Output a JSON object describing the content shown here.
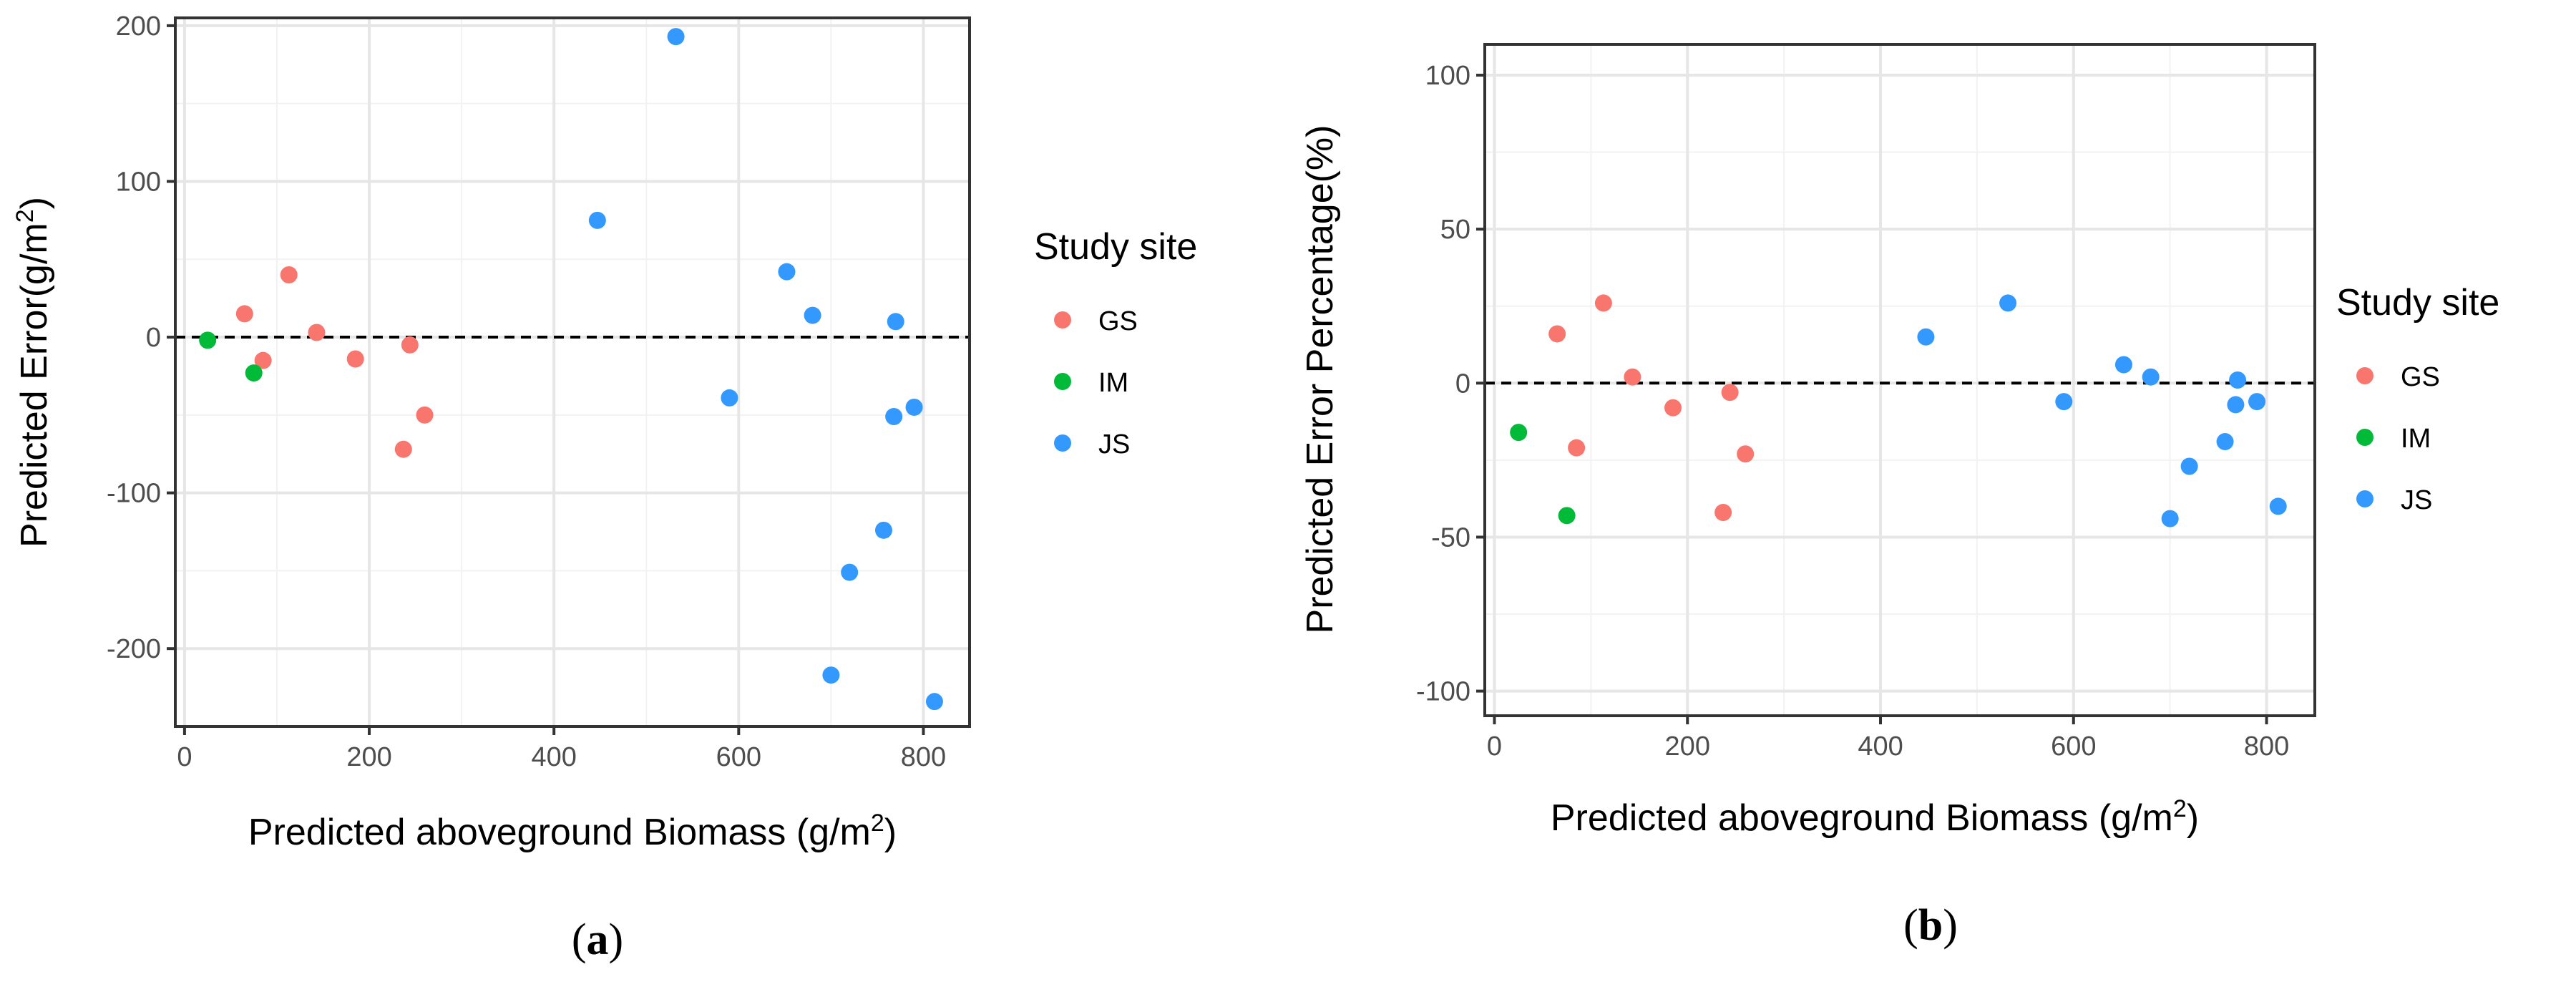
{
  "chart_data": [
    {
      "type": "scatter",
      "caption_open": "(",
      "caption_letter": "a",
      "caption_close": ")",
      "xlabel": "Predicted aboveground Biomass (g/m",
      "xlabel_sup": "2",
      "xlabel_close": ")",
      "ylabel": "Predicted Error(g/m",
      "ylabel_sup": "2",
      "ylabel_close": ")",
      "xlim": [
        -10,
        850
      ],
      "ylim": [
        -250,
        205
      ],
      "xticks": [
        0,
        200,
        400,
        600,
        800
      ],
      "xtick_labels": [
        "0",
        "200",
        "400",
        "600",
        "800"
      ],
      "yticks": [
        -200,
        -100,
        0,
        100,
        200
      ],
      "ytick_labels": [
        "-200",
        "-100",
        "0",
        "100",
        "200"
      ],
      "x_minor": [
        100,
        300,
        500,
        700
      ],
      "y_minor": [
        -150,
        -50,
        50,
        150
      ],
      "grid": true,
      "hline": 0,
      "legend_title": "Study site",
      "legend_position": "right",
      "series": [
        {
          "name": "GS",
          "color": "#F8766D",
          "x": [
            65,
            85,
            113,
            143,
            185,
            237,
            244,
            260
          ],
          "y": [
            15,
            -15,
            40,
            3,
            -14,
            -72,
            -5,
            -50
          ]
        },
        {
          "name": "IM",
          "color": "#00BA38",
          "x": [
            25,
            75
          ],
          "y": [
            -2,
            -23
          ]
        },
        {
          "name": "JS",
          "color": "#3399FF",
          "x": [
            447,
            532,
            590,
            652,
            680,
            700,
            720,
            757,
            768,
            770,
            790,
            812
          ],
          "y": [
            75,
            193,
            -39,
            42,
            14,
            -217,
            -151,
            -124,
            -51,
            10,
            -45,
            -234
          ]
        }
      ]
    },
    {
      "type": "scatter",
      "caption_open": "(",
      "caption_letter": "b",
      "caption_close": ")",
      "xlabel": "Predicted aboveground Biomass (g/m",
      "xlabel_sup": "2",
      "xlabel_close": ")",
      "ylabel": "Predicted Error Percentage(%)",
      "xlim": [
        -10,
        850
      ],
      "ylim": [
        -108,
        110
      ],
      "xticks": [
        0,
        200,
        400,
        600,
        800
      ],
      "xtick_labels": [
        "0",
        "200",
        "400",
        "600",
        "800"
      ],
      "yticks": [
        -100,
        -50,
        0,
        50,
        100
      ],
      "ytick_labels": [
        "-100",
        "-50",
        "0",
        "50",
        "100"
      ],
      "x_minor": [
        100,
        300,
        500,
        700
      ],
      "y_minor": [
        -75,
        -25,
        25,
        75
      ],
      "grid": true,
      "hline": 0,
      "legend_title": "Study site",
      "legend_position": "right",
      "series": [
        {
          "name": "GS",
          "color": "#F8766D",
          "x": [
            65,
            85,
            113,
            143,
            185,
            237,
            244,
            260
          ],
          "y": [
            16,
            -21,
            26,
            2,
            -8,
            -42,
            -3,
            -23
          ]
        },
        {
          "name": "IM",
          "color": "#00BA38",
          "x": [
            25,
            75
          ],
          "y": [
            -16,
            -43
          ]
        },
        {
          "name": "JS",
          "color": "#3399FF",
          "x": [
            447,
            532,
            590,
            652,
            680,
            700,
            720,
            757,
            768,
            770,
            790,
            812
          ],
          "y": [
            15,
            26,
            -6,
            6,
            2,
            -44,
            -27,
            -19,
            -7,
            1,
            -6,
            -40
          ]
        }
      ]
    }
  ]
}
